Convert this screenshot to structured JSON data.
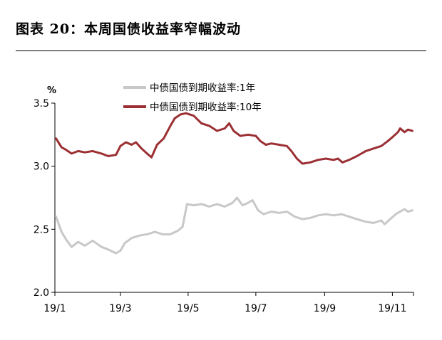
{
  "figure_title": "图表 20：本周国债收益率窄幅波动",
  "chart_data": {
    "type": "line",
    "title": "图表 20：本周国债收益率窄幅波动",
    "ylabel": "%",
    "xlabel": "",
    "ylim": [
      2.0,
      3.5
    ],
    "y_ticks": [
      "2.0",
      "2.5",
      "3.0",
      "3.5"
    ],
    "x_ticks": [
      "19/1",
      "19/3",
      "19/5",
      "19/7",
      "19/9",
      "19/11"
    ],
    "x_tick_dates": [
      "2019-01-01",
      "2019-03-01",
      "2019-05-01",
      "2019-07-01",
      "2019-09-01",
      "2019-11-01"
    ],
    "xlim": [
      "2019-01-01",
      "2019-11-20"
    ],
    "grid": false,
    "legend_position": "top-center",
    "series": [
      {
        "name": "中债国债到期收益率:1年",
        "color": "#c8c8c8",
        "points": [
          [
            "2019-01-02",
            2.6
          ],
          [
            "2019-01-07",
            2.48
          ],
          [
            "2019-01-11",
            2.42
          ],
          [
            "2019-01-16",
            2.36
          ],
          [
            "2019-01-22",
            2.4
          ],
          [
            "2019-01-28",
            2.37
          ],
          [
            "2019-02-04",
            2.41
          ],
          [
            "2019-02-12",
            2.36
          ],
          [
            "2019-02-18",
            2.34
          ],
          [
            "2019-02-25",
            2.31
          ],
          [
            "2019-03-01",
            2.33
          ],
          [
            "2019-03-05",
            2.39
          ],
          [
            "2019-03-11",
            2.43
          ],
          [
            "2019-03-18",
            2.45
          ],
          [
            "2019-03-25",
            2.46
          ],
          [
            "2019-04-01",
            2.48
          ],
          [
            "2019-04-08",
            2.46
          ],
          [
            "2019-04-15",
            2.46
          ],
          [
            "2019-04-22",
            2.49
          ],
          [
            "2019-04-26",
            2.52
          ],
          [
            "2019-04-30",
            2.7
          ],
          [
            "2019-05-06",
            2.69
          ],
          [
            "2019-05-13",
            2.7
          ],
          [
            "2019-05-20",
            2.68
          ],
          [
            "2019-05-27",
            2.7
          ],
          [
            "2019-06-03",
            2.68
          ],
          [
            "2019-06-10",
            2.71
          ],
          [
            "2019-06-14",
            2.75
          ],
          [
            "2019-06-19",
            2.69
          ],
          [
            "2019-06-24",
            2.71
          ],
          [
            "2019-06-28",
            2.73
          ],
          [
            "2019-07-03",
            2.65
          ],
          [
            "2019-07-08",
            2.62
          ],
          [
            "2019-07-15",
            2.64
          ],
          [
            "2019-07-22",
            2.63
          ],
          [
            "2019-07-29",
            2.64
          ],
          [
            "2019-08-05",
            2.6
          ],
          [
            "2019-08-12",
            2.58
          ],
          [
            "2019-08-19",
            2.59
          ],
          [
            "2019-08-26",
            2.61
          ],
          [
            "2019-09-02",
            2.62
          ],
          [
            "2019-09-09",
            2.61
          ],
          [
            "2019-09-16",
            2.62
          ],
          [
            "2019-09-23",
            2.6
          ],
          [
            "2019-09-30",
            2.58
          ],
          [
            "2019-10-08",
            2.56
          ],
          [
            "2019-10-15",
            2.55
          ],
          [
            "2019-10-22",
            2.57
          ],
          [
            "2019-10-25",
            2.54
          ],
          [
            "2019-10-30",
            2.58
          ],
          [
            "2019-11-04",
            2.62
          ],
          [
            "2019-11-08",
            2.64
          ],
          [
            "2019-11-12",
            2.66
          ],
          [
            "2019-11-15",
            2.64
          ],
          [
            "2019-11-19",
            2.65
          ]
        ]
      },
      {
        "name": "中债国债到期收益率:10年",
        "color": "#9b2f33",
        "points": [
          [
            "2019-01-02",
            3.22
          ],
          [
            "2019-01-07",
            3.15
          ],
          [
            "2019-01-11",
            3.13
          ],
          [
            "2019-01-16",
            3.1
          ],
          [
            "2019-01-22",
            3.12
          ],
          [
            "2019-01-28",
            3.11
          ],
          [
            "2019-02-04",
            3.12
          ],
          [
            "2019-02-12",
            3.1
          ],
          [
            "2019-02-18",
            3.08
          ],
          [
            "2019-02-25",
            3.09
          ],
          [
            "2019-03-01",
            3.16
          ],
          [
            "2019-03-06",
            3.19
          ],
          [
            "2019-03-11",
            3.17
          ],
          [
            "2019-03-15",
            3.19
          ],
          [
            "2019-03-20",
            3.14
          ],
          [
            "2019-03-25",
            3.1
          ],
          [
            "2019-03-29",
            3.07
          ],
          [
            "2019-04-03",
            3.17
          ],
          [
            "2019-04-09",
            3.22
          ],
          [
            "2019-04-15",
            3.32
          ],
          [
            "2019-04-19",
            3.38
          ],
          [
            "2019-04-24",
            3.41
          ],
          [
            "2019-04-29",
            3.42
          ],
          [
            "2019-05-06",
            3.4
          ],
          [
            "2019-05-13",
            3.34
          ],
          [
            "2019-05-20",
            3.32
          ],
          [
            "2019-05-27",
            3.28
          ],
          [
            "2019-06-03",
            3.3
          ],
          [
            "2019-06-07",
            3.34
          ],
          [
            "2019-06-11",
            3.28
          ],
          [
            "2019-06-17",
            3.24
          ],
          [
            "2019-06-24",
            3.25
          ],
          [
            "2019-07-01",
            3.24
          ],
          [
            "2019-07-05",
            3.2
          ],
          [
            "2019-07-10",
            3.17
          ],
          [
            "2019-07-15",
            3.18
          ],
          [
            "2019-07-22",
            3.17
          ],
          [
            "2019-07-29",
            3.16
          ],
          [
            "2019-08-02",
            3.12
          ],
          [
            "2019-08-07",
            3.06
          ],
          [
            "2019-08-12",
            3.02
          ],
          [
            "2019-08-19",
            3.03
          ],
          [
            "2019-08-26",
            3.05
          ],
          [
            "2019-09-02",
            3.06
          ],
          [
            "2019-09-09",
            3.05
          ],
          [
            "2019-09-13",
            3.06
          ],
          [
            "2019-09-17",
            3.03
          ],
          [
            "2019-09-23",
            3.05
          ],
          [
            "2019-09-30",
            3.08
          ],
          [
            "2019-10-08",
            3.12
          ],
          [
            "2019-10-15",
            3.14
          ],
          [
            "2019-10-22",
            3.16
          ],
          [
            "2019-10-28",
            3.2
          ],
          [
            "2019-11-01",
            3.23
          ],
          [
            "2019-11-06",
            3.27
          ],
          [
            "2019-11-08",
            3.3
          ],
          [
            "2019-11-12",
            3.27
          ],
          [
            "2019-11-15",
            3.29
          ],
          [
            "2019-11-19",
            3.28
          ]
        ]
      }
    ]
  }
}
